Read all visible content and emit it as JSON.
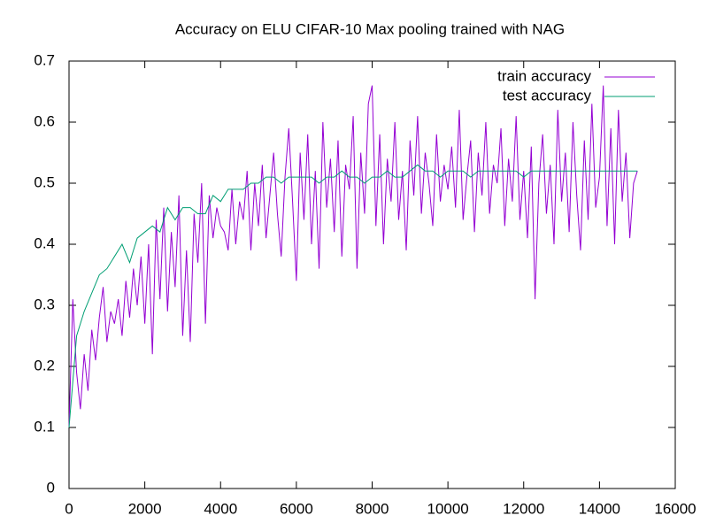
{
  "chart_data": {
    "type": "line",
    "title": "Accuracy on ELU CIFAR-10 Max pooling trained with NAG",
    "xlim": [
      0,
      16000
    ],
    "ylim": [
      0,
      0.7
    ],
    "xticks": [
      0,
      2000,
      4000,
      6000,
      8000,
      10000,
      12000,
      14000,
      16000
    ],
    "yticks": [
      0,
      0.1,
      0.2,
      0.3,
      0.4,
      0.5,
      0.6,
      0.7
    ],
    "legend": "top-right",
    "series": [
      {
        "name": "train accuracy",
        "color": "#9400d3",
        "x": [
          0,
          100,
          200,
          300,
          400,
          500,
          600,
          700,
          800,
          900,
          1000,
          1100,
          1200,
          1300,
          1400,
          1500,
          1600,
          1700,
          1800,
          1900,
          2000,
          2100,
          2200,
          2300,
          2400,
          2500,
          2600,
          2700,
          2800,
          2900,
          3000,
          3100,
          3200,
          3300,
          3400,
          3500,
          3600,
          3700,
          3800,
          3900,
          4000,
          4100,
          4200,
          4300,
          4400,
          4500,
          4600,
          4700,
          4800,
          4900,
          5000,
          5100,
          5200,
          5300,
          5400,
          5500,
          5600,
          5700,
          5800,
          5900,
          6000,
          6100,
          6200,
          6300,
          6400,
          6500,
          6600,
          6700,
          6800,
          6900,
          7000,
          7100,
          7200,
          7300,
          7400,
          7500,
          7600,
          7700,
          7800,
          7900,
          8000,
          8100,
          8200,
          8300,
          8400,
          8500,
          8600,
          8700,
          8800,
          8900,
          9000,
          9100,
          9200,
          9300,
          9400,
          9500,
          9600,
          9700,
          9800,
          9900,
          10000,
          10100,
          10200,
          10300,
          10400,
          10500,
          10600,
          10700,
          10800,
          10900,
          11000,
          11100,
          11200,
          11300,
          11400,
          11500,
          11600,
          11700,
          11800,
          11900,
          12000,
          12100,
          12200,
          12300,
          12400,
          12500,
          12600,
          12700,
          12800,
          12900,
          13000,
          13100,
          13200,
          13300,
          13400,
          13500,
          13600,
          13700,
          13800,
          13900,
          14000,
          14100,
          14200,
          14300,
          14400,
          14500,
          14600,
          14700,
          14800,
          14900,
          15000
        ],
        "values": [
          0.1,
          0.31,
          0.19,
          0.13,
          0.22,
          0.16,
          0.26,
          0.21,
          0.28,
          0.33,
          0.24,
          0.29,
          0.27,
          0.31,
          0.25,
          0.34,
          0.28,
          0.36,
          0.3,
          0.38,
          0.27,
          0.4,
          0.22,
          0.44,
          0.31,
          0.46,
          0.29,
          0.42,
          0.33,
          0.48,
          0.25,
          0.39,
          0.24,
          0.45,
          0.37,
          0.5,
          0.27,
          0.48,
          0.41,
          0.46,
          0.43,
          0.42,
          0.39,
          0.49,
          0.4,
          0.47,
          0.44,
          0.52,
          0.39,
          0.5,
          0.43,
          0.53,
          0.41,
          0.48,
          0.55,
          0.45,
          0.38,
          0.51,
          0.59,
          0.47,
          0.34,
          0.55,
          0.44,
          0.58,
          0.4,
          0.52,
          0.36,
          0.6,
          0.46,
          0.54,
          0.42,
          0.57,
          0.38,
          0.53,
          0.49,
          0.61,
          0.36,
          0.55,
          0.45,
          0.63,
          0.66,
          0.43,
          0.58,
          0.4,
          0.54,
          0.47,
          0.6,
          0.44,
          0.52,
          0.39,
          0.57,
          0.48,
          0.61,
          0.45,
          0.55,
          0.5,
          0.43,
          0.58,
          0.47,
          0.53,
          0.49,
          0.56,
          0.46,
          0.62,
          0.44,
          0.51,
          0.57,
          0.42,
          0.55,
          0.48,
          0.6,
          0.45,
          0.53,
          0.5,
          0.59,
          0.43,
          0.54,
          0.47,
          0.61,
          0.44,
          0.52,
          0.41,
          0.56,
          0.31,
          0.5,
          0.58,
          0.45,
          0.53,
          0.4,
          0.62,
          0.47,
          0.55,
          0.42,
          0.6,
          0.48,
          0.39,
          0.57,
          0.44,
          0.63,
          0.46,
          0.51,
          0.66,
          0.43,
          0.59,
          0.4,
          0.62,
          0.47,
          0.55,
          0.41,
          0.5,
          0.52
        ]
      },
      {
        "name": "test accuracy",
        "color": "#009e73",
        "x": [
          0,
          200,
          400,
          600,
          800,
          1000,
          1200,
          1400,
          1600,
          1800,
          2000,
          2200,
          2400,
          2600,
          2800,
          3000,
          3200,
          3400,
          3600,
          3800,
          4000,
          4200,
          4400,
          4600,
          4800,
          5000,
          5200,
          5400,
          5600,
          5800,
          6000,
          6200,
          6400,
          6600,
          6800,
          7000,
          7200,
          7400,
          7600,
          7800,
          8000,
          8200,
          8400,
          8600,
          8800,
          9000,
          9200,
          9400,
          9600,
          9800,
          10000,
          10200,
          10400,
          10600,
          10800,
          11000,
          11200,
          11400,
          11600,
          11800,
          12000,
          12200,
          12400,
          12600,
          12800,
          13000,
          13200,
          13400,
          13600,
          13800,
          14000,
          14200,
          14400,
          14600,
          14800,
          15000
        ],
        "values": [
          0.1,
          0.25,
          0.29,
          0.32,
          0.35,
          0.36,
          0.38,
          0.4,
          0.37,
          0.41,
          0.42,
          0.43,
          0.42,
          0.46,
          0.44,
          0.46,
          0.46,
          0.45,
          0.45,
          0.48,
          0.47,
          0.49,
          0.49,
          0.49,
          0.5,
          0.5,
          0.51,
          0.51,
          0.5,
          0.51,
          0.51,
          0.51,
          0.51,
          0.5,
          0.51,
          0.51,
          0.52,
          0.51,
          0.51,
          0.5,
          0.51,
          0.51,
          0.52,
          0.51,
          0.51,
          0.52,
          0.53,
          0.52,
          0.52,
          0.51,
          0.52,
          0.52,
          0.52,
          0.51,
          0.52,
          0.52,
          0.52,
          0.52,
          0.52,
          0.52,
          0.51,
          0.52,
          0.52,
          0.52,
          0.52,
          0.52,
          0.52,
          0.52,
          0.52,
          0.52,
          0.52,
          0.52,
          0.52,
          0.52,
          0.52,
          0.52
        ]
      }
    ]
  }
}
